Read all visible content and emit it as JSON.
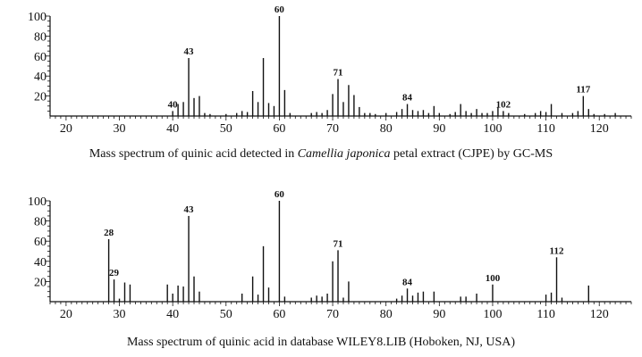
{
  "chart_data": [
    {
      "type": "bar",
      "caption": {
        "before": "Mass spectrum of quinic acid detected in ",
        "italic": "Camellia japonica",
        "after": " petal extract (CJPE) by GC-MS"
      },
      "xlim": [
        17,
        126
      ],
      "ylim": [
        0,
        100
      ],
      "xticks": [
        20,
        30,
        40,
        50,
        60,
        70,
        80,
        90,
        100,
        110,
        120
      ],
      "yticks": [
        20,
        40,
        60,
        80,
        100
      ],
      "y_tick_labels": [
        "20",
        "40",
        "60",
        "80",
        "100"
      ],
      "peaks": [
        {
          "x": 40,
          "y": 5,
          "label": "40"
        },
        {
          "x": 41,
          "y": 12
        },
        {
          "x": 42,
          "y": 14
        },
        {
          "x": 43,
          "y": 58,
          "label": "43"
        },
        {
          "x": 44,
          "y": 18
        },
        {
          "x": 45,
          "y": 20
        },
        {
          "x": 46,
          "y": 3
        },
        {
          "x": 47,
          "y": 2
        },
        {
          "x": 50,
          "y": 2
        },
        {
          "x": 52,
          "y": 3
        },
        {
          "x": 53,
          "y": 5
        },
        {
          "x": 54,
          "y": 4
        },
        {
          "x": 55,
          "y": 25
        },
        {
          "x": 56,
          "y": 14
        },
        {
          "x": 57,
          "y": 58
        },
        {
          "x": 58,
          "y": 13
        },
        {
          "x": 59,
          "y": 10
        },
        {
          "x": 60,
          "y": 100,
          "label": "60"
        },
        {
          "x": 61,
          "y": 26
        },
        {
          "x": 62,
          "y": 3
        },
        {
          "x": 66,
          "y": 3
        },
        {
          "x": 67,
          "y": 4
        },
        {
          "x": 68,
          "y": 3
        },
        {
          "x": 69,
          "y": 6
        },
        {
          "x": 70,
          "y": 22
        },
        {
          "x": 71,
          "y": 37,
          "label": "71"
        },
        {
          "x": 72,
          "y": 14
        },
        {
          "x": 73,
          "y": 31
        },
        {
          "x": 74,
          "y": 21
        },
        {
          "x": 75,
          "y": 9
        },
        {
          "x": 76,
          "y": 3
        },
        {
          "x": 77,
          "y": 3
        },
        {
          "x": 78,
          "y": 2
        },
        {
          "x": 80,
          "y": 3
        },
        {
          "x": 82,
          "y": 4
        },
        {
          "x": 83,
          "y": 7
        },
        {
          "x": 84,
          "y": 12,
          "label": "84"
        },
        {
          "x": 85,
          "y": 6
        },
        {
          "x": 86,
          "y": 5
        },
        {
          "x": 87,
          "y": 6
        },
        {
          "x": 88,
          "y": 3
        },
        {
          "x": 89,
          "y": 10
        },
        {
          "x": 90,
          "y": 3
        },
        {
          "x": 92,
          "y": 2
        },
        {
          "x": 93,
          "y": 4
        },
        {
          "x": 94,
          "y": 12
        },
        {
          "x": 95,
          "y": 5
        },
        {
          "x": 96,
          "y": 3
        },
        {
          "x": 97,
          "y": 7
        },
        {
          "x": 98,
          "y": 3
        },
        {
          "x": 99,
          "y": 3
        },
        {
          "x": 100,
          "y": 5
        },
        {
          "x": 101,
          "y": 9
        },
        {
          "x": 102,
          "y": 5,
          "label": "102"
        },
        {
          "x": 103,
          "y": 3
        },
        {
          "x": 106,
          "y": 2
        },
        {
          "x": 108,
          "y": 3
        },
        {
          "x": 109,
          "y": 5
        },
        {
          "x": 110,
          "y": 4
        },
        {
          "x": 111,
          "y": 12
        },
        {
          "x": 113,
          "y": 3
        },
        {
          "x": 115,
          "y": 3
        },
        {
          "x": 116,
          "y": 5
        },
        {
          "x": 117,
          "y": 20,
          "label": "117"
        },
        {
          "x": 118,
          "y": 7
        },
        {
          "x": 119,
          "y": 2
        },
        {
          "x": 121,
          "y": 2
        },
        {
          "x": 123,
          "y": 3
        }
      ]
    },
    {
      "type": "bar",
      "caption": {
        "before": "Mass spectrum of quinic acid in database WILEY8.LIB (Hoboken, NJ, USA)",
        "italic": "",
        "after": ""
      },
      "xlim": [
        17,
        126
      ],
      "ylim": [
        0,
        100
      ],
      "xticks": [
        20,
        30,
        40,
        50,
        60,
        70,
        80,
        90,
        100,
        110,
        120
      ],
      "yticks": [
        20,
        40,
        60,
        80,
        100
      ],
      "y_tick_labels": [
        "20",
        "40",
        "60",
        "80",
        "100"
      ],
      "peaks": [
        {
          "x": 28,
          "y": 62,
          "label": "28"
        },
        {
          "x": 29,
          "y": 22,
          "label": "29"
        },
        {
          "x": 30,
          "y": 3
        },
        {
          "x": 31,
          "y": 19
        },
        {
          "x": 32,
          "y": 17
        },
        {
          "x": 39,
          "y": 17
        },
        {
          "x": 40,
          "y": 8
        },
        {
          "x": 41,
          "y": 16
        },
        {
          "x": 42,
          "y": 15
        },
        {
          "x": 43,
          "y": 85,
          "label": "43"
        },
        {
          "x": 44,
          "y": 25
        },
        {
          "x": 45,
          "y": 10
        },
        {
          "x": 53,
          "y": 8
        },
        {
          "x": 55,
          "y": 25
        },
        {
          "x": 56,
          "y": 7
        },
        {
          "x": 57,
          "y": 55
        },
        {
          "x": 58,
          "y": 14
        },
        {
          "x": 60,
          "y": 100,
          "label": "60"
        },
        {
          "x": 61,
          "y": 5
        },
        {
          "x": 66,
          "y": 4
        },
        {
          "x": 67,
          "y": 6
        },
        {
          "x": 68,
          "y": 5
        },
        {
          "x": 69,
          "y": 8
        },
        {
          "x": 70,
          "y": 40
        },
        {
          "x": 71,
          "y": 51,
          "label": "71"
        },
        {
          "x": 72,
          "y": 4
        },
        {
          "x": 73,
          "y": 20
        },
        {
          "x": 82,
          "y": 3
        },
        {
          "x": 83,
          "y": 6
        },
        {
          "x": 84,
          "y": 13,
          "label": "84"
        },
        {
          "x": 85,
          "y": 6
        },
        {
          "x": 86,
          "y": 9
        },
        {
          "x": 87,
          "y": 10
        },
        {
          "x": 89,
          "y": 10
        },
        {
          "x": 94,
          "y": 5
        },
        {
          "x": 95,
          "y": 5
        },
        {
          "x": 97,
          "y": 8
        },
        {
          "x": 100,
          "y": 17,
          "label": "100"
        },
        {
          "x": 110,
          "y": 7
        },
        {
          "x": 111,
          "y": 9
        },
        {
          "x": 112,
          "y": 44,
          "label": "112"
        },
        {
          "x": 113,
          "y": 4
        },
        {
          "x": 118,
          "y": 16
        }
      ]
    }
  ]
}
